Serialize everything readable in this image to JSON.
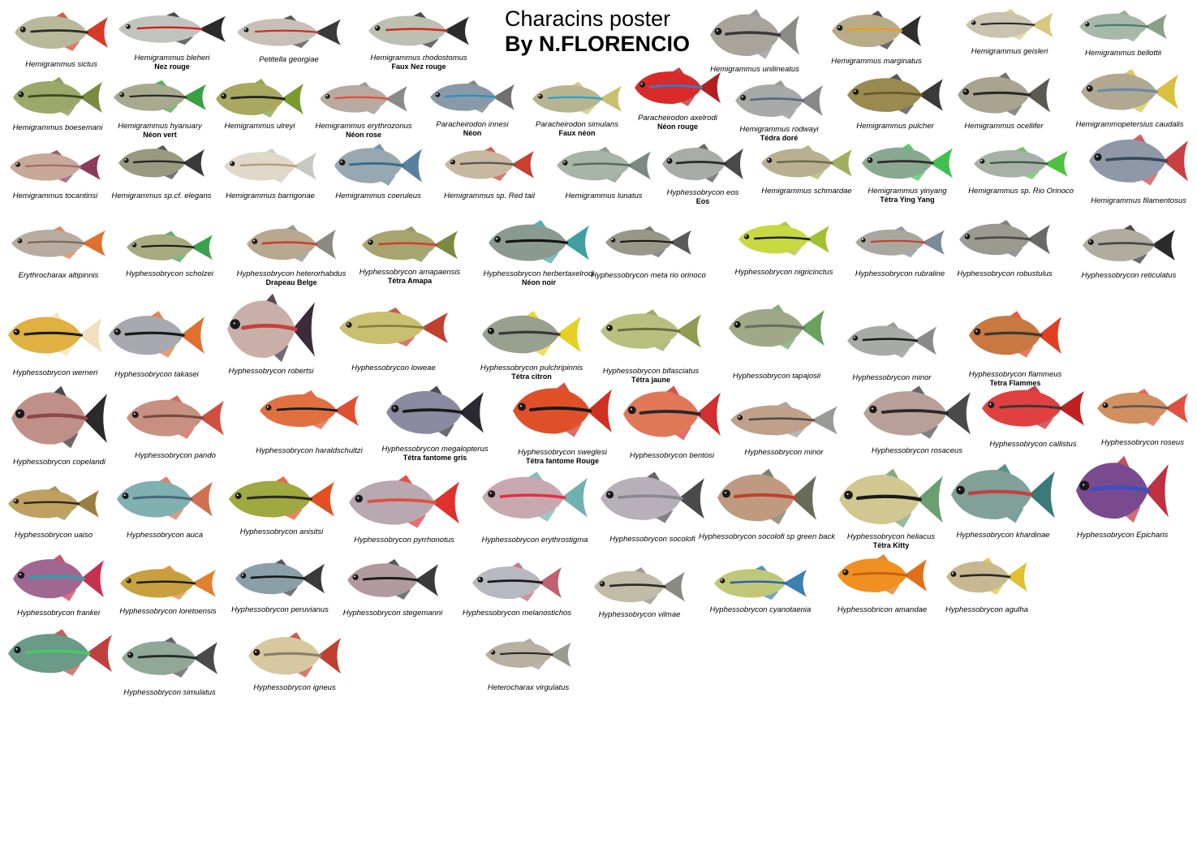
{
  "title": {
    "line1": "Characins poster",
    "line2": "By N.FLORENCIO"
  },
  "species": [
    {
      "latin": "Hemigrammus sictus",
      "common": "",
      "colors": {
        "body": "#b8b89a",
        "fin": "#d83a2a",
        "stripe": "#2b2b2b"
      }
    },
    {
      "latin": "Hemigrammus bleheri",
      "common": "Nez rouge",
      "colors": {
        "body": "#c0c4bc",
        "fin": "#2b2b2b",
        "stripe": "#d01818"
      }
    },
    {
      "latin": "Petitella georgiae",
      "common": "",
      "colors": {
        "body": "#c8c0b6",
        "fin": "#3a3a3a",
        "stripe": "#c83030"
      }
    },
    {
      "latin": "Hemigrammus rhodostomus",
      "common": "Faux Nez rouge",
      "colors": {
        "body": "#bcc0b0",
        "fin": "#2b2b2b",
        "stripe": "#d02a20"
      }
    },
    {
      "latin": "Hemigrammus unilineatus",
      "common": "",
      "colors": {
        "body": "#a8a49c",
        "fin": "#8a8a88",
        "stripe": "#3a3a3a"
      }
    },
    {
      "latin": "Hemigrammus marginatus",
      "common": "",
      "colors": {
        "body": "#b8ac88",
        "fin": "#2e2e2e",
        "stripe": "#e0a020"
      }
    },
    {
      "latin": "Hemigrammus geisleri",
      "common": "",
      "colors": {
        "body": "#c8c4b0",
        "fin": "#d8c880",
        "stripe": "#2a2a2a"
      }
    },
    {
      "latin": "Hemigrammus bellottii",
      "common": "",
      "colors": {
        "body": "#a8b8a8",
        "fin": "#88a088",
        "stripe": "#4a7a6a"
      }
    },
    {
      "latin": "Hemigrammus boesemani",
      "common": "",
      "colors": {
        "body": "#9aa86a",
        "fin": "#7a8a40",
        "stripe": "#3e4a22"
      }
    },
    {
      "latin": "Hemigrammus hyanuary",
      "common": "Néon vert",
      "colors": {
        "body": "#a8aa8e",
        "fin": "#38a040",
        "stripe": "#2c2c2c"
      }
    },
    {
      "latin": "Hemigrammus ulreyi",
      "common": "",
      "colors": {
        "body": "#a8a860",
        "fin": "#7a9a30",
        "stripe": "#222222"
      }
    },
    {
      "latin": "Hemigrammus erythrozonus",
      "common": "Néon rose",
      "colors": {
        "body": "#b8aaa0",
        "fin": "#8a8a8a",
        "stripe": "#e05040"
      }
    },
    {
      "latin": "Paracheirodon innesi",
      "common": "Néon",
      "colors": {
        "body": "#889aa8",
        "fin": "#707070",
        "stripe": "#2a90c8"
      }
    },
    {
      "latin": "Paracheirodon simulans",
      "common": "Faux néon",
      "colors": {
        "body": "#b8b490",
        "fin": "#c8c070",
        "stripe": "#2aa0d0"
      }
    },
    {
      "latin": "Paracheirodon axelrodi",
      "common": "Néon rouge",
      "colors": {
        "body": "#d82a28",
        "fin": "#b02020",
        "stripe": "#2a80d8"
      }
    },
    {
      "latin": "Hemigrammus rodwayi",
      "common": "Tédra doré",
      "colors": {
        "body": "#a8aaa8",
        "fin": "#888888",
        "stripe": "#5a6a80"
      }
    },
    {
      "latin": "Hemigrammus pulcher",
      "common": "",
      "colors": {
        "body": "#9a8a50",
        "fin": "#3a3a3a",
        "stripe": "#6a5a30"
      }
    },
    {
      "latin": "Hemigrammus  ocellifer",
      "common": "",
      "colors": {
        "body": "#a8a490",
        "fin": "#5a5a50",
        "stripe": "#2a2a2a"
      }
    },
    {
      "latin": "Hemigrammopetersius caudalis",
      "common": "",
      "colors": {
        "body": "#b0a890",
        "fin": "#d8c040",
        "stripe": "#6a88b0"
      }
    },
    {
      "latin": "Hemigrammus tocantinsi",
      "common": "",
      "colors": {
        "body": "#c8a898",
        "fin": "#8a3a5a",
        "stripe": "#a86a6a"
      }
    },
    {
      "latin": "Hemigrammus sp.cf. elegans",
      "common": "",
      "colors": {
        "body": "#989a80",
        "fin": "#3a3a3a",
        "stripe": "#2a2a2a"
      }
    },
    {
      "latin": "Hemigrammus barrigonae",
      "common": "",
      "colors": {
        "body": "#e0d8c8",
        "fin": "#c8c8c0",
        "stripe": "#b0a080"
      }
    },
    {
      "latin": "Hemigrammus coeruleus",
      "common": "",
      "colors": {
        "body": "#98a8b0",
        "fin": "#5a80a0",
        "stripe": "#3a6a8a"
      }
    },
    {
      "latin": "Hemigrammus sp. Red tail",
      "common": "",
      "colors": {
        "body": "#c8b8a0",
        "fin": "#c84030",
        "stripe": "#5a5a5a"
      }
    },
    {
      "latin": "Hemigrammus lunatus",
      "common": "",
      "colors": {
        "body": "#a8b4a8",
        "fin": "#7a8a80",
        "stripe": "#5a6a60"
      }
    },
    {
      "latin": "Hyphessobrycon eos",
      "common": "Eos",
      "colors": {
        "body": "#a8aca8",
        "fin": "#4a4a4a",
        "stripe": "#2a2a2a"
      }
    },
    {
      "latin": "Hemigrammus schmardae",
      "common": "",
      "colors": {
        "body": "#b8b090",
        "fin": "#a0b060",
        "stripe": "#6a6a4a"
      }
    },
    {
      "latin": "Hemigrammus yinyang",
      "common": "Tétra Ying Yang",
      "colors": {
        "body": "#88a890",
        "fin": "#40c050",
        "stripe": "#2a2a2a"
      }
    },
    {
      "latin": "Hemigrammus sp.  Rio Orinoco",
      "common": "",
      "colors": {
        "body": "#a8b0a8",
        "fin": "#50c040",
        "stripe": "#3a5a4a"
      }
    },
    {
      "latin": "Hemigrammus filamentosus",
      "common": "",
      "colors": {
        "body": "#9098a8",
        "fin": "#c84040",
        "stripe": "#3a4a5a"
      }
    },
    {
      "latin": "Erythrocharax altipinnis",
      "common": "",
      "colors": {
        "body": "#b8aca0",
        "fin": "#e07030",
        "stripe": "#7a6a5a"
      }
    },
    {
      "latin": "Hyphessobrycon scholzei",
      "common": "",
      "colors": {
        "body": "#a8aa80",
        "fin": "#3aa050",
        "stripe": "#1a1a1a"
      }
    },
    {
      "latin": "Hyphessobrycon heterorhabdus",
      "common": "Drapeau Belge",
      "colors": {
        "body": "#b8a890",
        "fin": "#8a8a80",
        "stripe": "#c84030"
      }
    },
    {
      "latin": "Hyphessobrycon amapaensis",
      "common": "Tétra Amapa",
      "colors": {
        "body": "#a8a470",
        "fin": "#7a8a40",
        "stripe": "#d04030"
      }
    },
    {
      "latin": "Hyphessobrycon herbertaxelrodi",
      "common": "Néon noir",
      "colors": {
        "body": "#8a9a90",
        "fin": "#40a0a0",
        "stripe": "#141414"
      }
    },
    {
      "latin": "Hyphessobrycon meta rio orinoco",
      "common": "",
      "colors": {
        "body": "#989888",
        "fin": "#5a5a5a",
        "stripe": "#1a1a1a"
      }
    },
    {
      "latin": "Hyphessobrycon nigricinctus",
      "common": "",
      "colors": {
        "body": "#c8d840",
        "fin": "#a0c030",
        "stripe": "#1a1a3a"
      }
    },
    {
      "latin": "Hyphessobrycon rubraline",
      "common": "",
      "colors": {
        "body": "#a8a8a0",
        "fin": "#7a8a98",
        "stripe": "#c04030"
      }
    },
    {
      "latin": "Hyphessobrycon robustulus",
      "common": "",
      "colors": {
        "body": "#9a9a90",
        "fin": "#6a6a68",
        "stripe": "#4a4a48"
      }
    },
    {
      "latin": "Hyphessobrycon reticulatus",
      "common": "",
      "colors": {
        "body": "#b0aca0",
        "fin": "#2a2a2a",
        "stripe": "#4a4a4a"
      }
    },
    {
      "latin": "Hyphessobrycon werneri",
      "common": "",
      "colors": {
        "body": "#e0b040",
        "fin": "#f0e0c0",
        "stripe": "#1a1a1a"
      }
    },
    {
      "latin": "Hyphessobrycon takasei",
      "common": "",
      "colors": {
        "body": "#a8a8b0",
        "fin": "#e07030",
        "stripe": "#1a1a1a"
      }
    },
    {
      "latin": "Hyphessobrycon robertsi",
      "common": "",
      "colors": {
        "body": "#c8b0a8",
        "fin": "#3a2a3a",
        "stripe": "#c84040"
      }
    },
    {
      "latin": "Hyphessobrycon loweae",
      "common": "",
      "colors": {
        "body": "#c8c070",
        "fin": "#c04030",
        "stripe": "#8a8040"
      }
    },
    {
      "latin": "Hyphessobrycon pulchripinnis",
      "common": "Tétra citron",
      "colors": {
        "body": "#98a090",
        "fin": "#e8d020",
        "stripe": "#3a3a3a"
      }
    },
    {
      "latin": "Hyphessobrycon bifasciatus",
      "common": "Tétra jaune",
      "colors": {
        "body": "#b8c080",
        "fin": "#909a50",
        "stripe": "#6a7040"
      }
    },
    {
      "latin": "Hyphessobrycon  tapajosii",
      "common": "",
      "colors": {
        "body": "#a0a888",
        "fin": "#6aa060",
        "stripe": "#6a7060"
      }
    },
    {
      "latin": "Hyphessobrycon minor",
      "common": "",
      "colors": {
        "body": "#a8aaa8",
        "fin": "#8a8a8a",
        "stripe": "#1a1a1a"
      }
    },
    {
      "latin": "Hyphessobrycon flammeus",
      "common": "Tetra Flammes",
      "colors": {
        "body": "#c87840",
        "fin": "#e04020",
        "stripe": "#3a3a3a"
      }
    },
    {
      "latin": "Hyphessobrycon copelandi",
      "common": "",
      "colors": {
        "body": "#c09088",
        "fin": "#2a2a2a",
        "stripe": "#8a4a48"
      }
    },
    {
      "latin": "Hyphessobrycon pando",
      "common": "",
      "colors": {
        "body": "#c89080",
        "fin": "#d05040",
        "stripe": "#7a4a40"
      }
    },
    {
      "latin": "Hyphessobrycon haraldschultzi",
      "common": "",
      "colors": {
        "body": "#e07040",
        "fin": "#e05030",
        "stripe": "#1a1a1a"
      }
    },
    {
      "latin": "Hyphessobrycon megalopterus",
      "common": "Tétra fantome gris",
      "colors": {
        "body": "#8a8aa0",
        "fin": "#2a2a30",
        "stripe": "#1a1a1a"
      }
    },
    {
      "latin": "Hyphessobrycon sweglesi",
      "common": "Tétra fantome Rouge",
      "colors": {
        "body": "#e05028",
        "fin": "#d03020",
        "stripe": "#1a1a1a"
      }
    },
    {
      "latin": "Hyphessobrycon bentosi",
      "common": "",
      "colors": {
        "body": "#e07858",
        "fin": "#d03030",
        "stripe": "#2a2a2a"
      }
    },
    {
      "latin": "Hyphessobrycon minor",
      "common": "",
      "colors": {
        "body": "#c0a088",
        "fin": "#9a9a98",
        "stripe": "#4a4a48"
      }
    },
    {
      "latin": "Hyphessobrycon rosaceus",
      "common": "",
      "colors": {
        "body": "#b8a098",
        "fin": "#4a4a4a",
        "stripe": "#2a2a2a"
      }
    },
    {
      "latin": "Hyphessobrycon callistus",
      "common": "",
      "colors": {
        "body": "#e04040",
        "fin": "#c02020",
        "stripe": "#3a3a3a"
      }
    },
    {
      "latin": "Hyphessobrycon roseus",
      "common": "",
      "colors": {
        "body": "#d09060",
        "fin": "#e05040",
        "stripe": "#5a5a5a"
      }
    },
    {
      "latin": "Hyphessobrycon uaiso",
      "common": "",
      "colors": {
        "body": "#c0a060",
        "fin": "#9a8040",
        "stripe": "#2a2a2a"
      }
    },
    {
      "latin": "Hyphessobrycon auca",
      "common": "",
      "colors": {
        "body": "#80b0b0",
        "fin": "#d07050",
        "stripe": "#4a6a7a"
      }
    },
    {
      "latin": "Hyphessobrycon anisitsi",
      "common": "",
      "colors": {
        "body": "#a0a840",
        "fin": "#e05020",
        "stripe": "#2a2a2a"
      }
    },
    {
      "latin": "Hyphessobrycon pyrrhonotus",
      "common": "",
      "colors": {
        "body": "#b8a8b0",
        "fin": "#e03030",
        "stripe": "#e05040"
      }
    },
    {
      "latin": "Hyphessobrycon erythrostigma",
      "common": "",
      "colors": {
        "body": "#c8a8b0",
        "fin": "#70b0b0",
        "stripe": "#e03040"
      }
    },
    {
      "latin": "Hyphessobrycon socolofi",
      "common": "",
      "colors": {
        "body": "#b8b0b8",
        "fin": "#4a4a4a",
        "stripe": "#8a8a90"
      }
    },
    {
      "latin": "Hyphessobrycon socolofi sp green back",
      "common": "",
      "colors": {
        "body": "#c09a80",
        "fin": "#6a6a58",
        "stripe": "#c04030"
      }
    },
    {
      "latin": "Hyphessobrycon heliacus",
      "common": "Tétra Kitty",
      "colors": {
        "body": "#d0c890",
        "fin": "#6aa070",
        "stripe": "#1a1a1a"
      }
    },
    {
      "latin": "Hyphessobrycon khardinae",
      "common": "",
      "colors": {
        "body": "#80a098",
        "fin": "#3a7a78",
        "stripe": "#c04040"
      }
    },
    {
      "latin": "Hyphessobrycon Epicharis",
      "common": "",
      "colors": {
        "body": "#7a4a90",
        "fin": "#c03040",
        "stripe": "#3a50c0"
      }
    },
    {
      "latin": "Hyphessobrycon frankei",
      "common": "",
      "colors": {
        "body": "#a06890",
        "fin": "#c83050",
        "stripe": "#30a0b0"
      }
    },
    {
      "latin": "Hyphessobrycon loretoensis",
      "common": "",
      "colors": {
        "body": "#c8a040",
        "fin": "#e08030",
        "stripe": "#1a1a1a"
      }
    },
    {
      "latin": "Hyphessobrycon peruvianus",
      "common": "",
      "colors": {
        "body": "#8aa0a8",
        "fin": "#3a3a3a",
        "stripe": "#1a1a1a"
      }
    },
    {
      "latin": "Hyphessobrycon stegemanni",
      "common": "",
      "colors": {
        "body": "#b09aa0",
        "fin": "#3a3a3a",
        "stripe": "#1a1a1a"
      }
    },
    {
      "latin": "Hyphessobrycon melanostichos",
      "common": "",
      "colors": {
        "body": "#b8b8c0",
        "fin": "#c06070",
        "stripe": "#1a1a1a"
      }
    },
    {
      "latin": "Hyphessobrycon vilmae",
      "common": "",
      "colors": {
        "body": "#c0bca8",
        "fin": "#8a8a80",
        "stripe": "#2a2a2a"
      }
    },
    {
      "latin": "Hyphessobrycon cyanotaenia",
      "common": "",
      "colors": {
        "body": "#c0c878",
        "fin": "#3a80b0",
        "stripe": "#2060c0"
      }
    },
    {
      "latin": "Hyphessobricon amandae",
      "common": "",
      "colors": {
        "body": "#f09020",
        "fin": "#e07018",
        "stripe": "#c86010"
      }
    },
    {
      "latin": "Hyphessobrycon agulha",
      "common": "",
      "colors": {
        "body": "#c8b890",
        "fin": "#e0c030",
        "stripe": "#2a2a2a"
      }
    },
    {
      "latin": "",
      "common": "",
      "colors": {
        "body": "#6a9a88",
        "fin": "#c04040",
        "stripe": "#40d060"
      }
    },
    {
      "latin": "Hyphessobrycon simulatus",
      "common": "",
      "colors": {
        "body": "#90a898",
        "fin": "#4a4a4a",
        "stripe": "#2a2a2a"
      }
    },
    {
      "latin": "Hyphessobrycon igneus",
      "common": "",
      "colors": {
        "body": "#d8c8a0",
        "fin": "#c04030",
        "stripe": "#8a8070"
      }
    },
    {
      "latin": "Heterocharax virgulatus",
      "common": "",
      "colors": {
        "body": "#b8b0a0",
        "fin": "#9a9a90",
        "stripe": "#2a2a2a"
      }
    }
  ]
}
